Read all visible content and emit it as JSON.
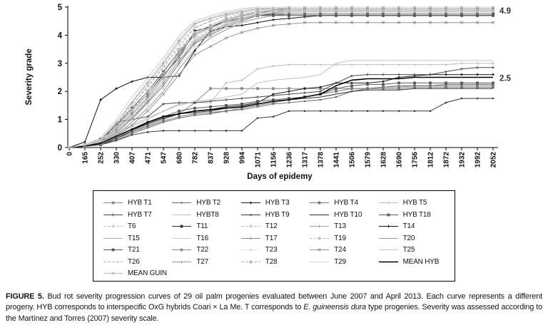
{
  "annotations": [
    {
      "text": "4.9",
      "value": 4.87
    },
    {
      "text": "2.5",
      "value": 2.47
    }
  ],
  "caption": {
    "label": "FIGURE 5.",
    "part1": " Bud rot severity progression curves of 29 oil palm progenies evaluated between June 2007 and April 2013. Each curve represents a different progeny. HYB corresponds to interspecific OxG hybrids Coari × La Me. T corresponds to ",
    "italic": "E. guineensis dura",
    "part2": " type progenies. Severity was assessed according to the Martínez and Torres (2007) severity scale."
  },
  "chart_data": {
    "type": "line",
    "title": "",
    "xlabel": "Days of epidemy",
    "ylabel": "Severity grade",
    "ylim": [
      0,
      5
    ],
    "yticks": [
      0,
      1,
      2,
      3,
      4,
      5
    ],
    "grid": false,
    "legend_position": "bottom-box",
    "categories": [
      0,
      165,
      252,
      330,
      407,
      471,
      547,
      680,
      782,
      837,
      928,
      994,
      1071,
      1156,
      1236,
      1317,
      1378,
      1441,
      1506,
      1579,
      1628,
      1690,
      1756,
      1812,
      1872,
      1932,
      1992,
      2052
    ],
    "series": [
      {
        "name": "HYB T1",
        "color": "#8a8a8a",
        "marker": "square",
        "dash": "solid",
        "width": 1,
        "values": [
          0,
          0.05,
          0.1,
          0.3,
          0.55,
          0.8,
          1.0,
          1.2,
          1.6,
          2.1,
          2.1,
          2.1,
          2.1,
          2.1,
          2.1,
          2.1,
          2.1,
          2.1,
          2.1,
          2.1,
          2.15,
          2.15,
          2.2,
          2.2,
          2.2,
          2.2,
          2.2,
          2.2
        ]
      },
      {
        "name": "HYB T2",
        "color": "#6e6e6e",
        "marker": "dot",
        "dash": "solid",
        "width": 1,
        "values": [
          0,
          0.05,
          0.1,
          0.25,
          0.5,
          0.7,
          0.9,
          1.05,
          1.15,
          1.2,
          1.3,
          1.35,
          1.45,
          1.55,
          1.6,
          1.65,
          1.7,
          1.8,
          2.0,
          2.1,
          2.15,
          2.2,
          2.2,
          2.2,
          2.25,
          2.25,
          2.25,
          2.25
        ]
      },
      {
        "name": "HYB T3",
        "color": "#1f1f1f",
        "marker": "diamond",
        "dash": "solid",
        "width": 1,
        "values": [
          0,
          0.05,
          0.15,
          0.4,
          0.65,
          0.85,
          1.05,
          1.2,
          1.3,
          1.35,
          1.45,
          1.5,
          1.6,
          1.9,
          2.0,
          2.1,
          2.15,
          2.3,
          2.3,
          2.3,
          2.35,
          2.5,
          2.55,
          2.6,
          2.6,
          2.6,
          2.6,
          2.6
        ]
      },
      {
        "name": "HYB T4",
        "color": "#7a7a7a",
        "marker": "square",
        "dash": "solid",
        "width": 1,
        "values": [
          0,
          0.05,
          0.1,
          0.3,
          0.55,
          0.75,
          0.95,
          1.1,
          1.2,
          1.25,
          1.3,
          1.4,
          1.5,
          1.6,
          1.7,
          1.8,
          1.9,
          2.0,
          2.1,
          2.1,
          2.1,
          2.1,
          2.15,
          2.15,
          2.15,
          2.15,
          2.15,
          2.15
        ]
      },
      {
        "name": "HYB T5",
        "color": "#bdbdbd",
        "marker": "plus",
        "dash": "solid",
        "width": 1,
        "values": [
          0,
          0.05,
          0.15,
          0.45,
          0.75,
          1.0,
          1.3,
          1.55,
          1.6,
          1.6,
          2.3,
          2.4,
          2.8,
          2.9,
          2.95,
          2.95,
          2.95,
          2.95,
          2.95,
          2.95,
          2.95,
          2.95,
          2.95,
          2.95,
          2.95,
          3.0,
          3.0,
          3.0
        ]
      },
      {
        "name": "HYB T7",
        "color": "#4a4a4a",
        "marker": "plus",
        "dash": "solid",
        "width": 1,
        "values": [
          0,
          0.05,
          0.15,
          0.9,
          1.0,
          1.1,
          1.55,
          1.6,
          1.6,
          1.65,
          1.7,
          1.75,
          1.8,
          1.85,
          1.9,
          1.95,
          2.0,
          2.3,
          2.55,
          2.6,
          2.6,
          2.6,
          2.6,
          2.6,
          2.7,
          2.8,
          2.85,
          2.85
        ]
      },
      {
        "name": "HYBT8",
        "color": "#c0c0c0",
        "marker": "none",
        "dash": "solid",
        "width": 1,
        "values": [
          0,
          0.05,
          0.2,
          0.5,
          0.8,
          1.05,
          1.3,
          1.5,
          1.65,
          1.7,
          1.8,
          1.9,
          2.3,
          2.4,
          2.45,
          2.5,
          2.6,
          3.0,
          3.1,
          3.1,
          3.1,
          3.1,
          3.1,
          3.1,
          3.1,
          3.1,
          3.1,
          3.1
        ]
      },
      {
        "name": "HYB T9",
        "color": "#3a3a3a",
        "marker": "dot",
        "dash": "solid",
        "width": 1,
        "values": [
          0,
          0.05,
          0.1,
          0.25,
          0.45,
          0.55,
          0.6,
          0.6,
          0.6,
          0.6,
          0.6,
          0.6,
          1.05,
          1.1,
          1.3,
          1.3,
          1.3,
          1.3,
          1.3,
          1.3,
          1.3,
          1.3,
          1.3,
          1.3,
          1.6,
          1.75,
          1.75,
          1.75
        ]
      },
      {
        "name": "HYB T10",
        "color": "#2a2a2a",
        "marker": "none",
        "dash": "solid",
        "width": 1,
        "values": [
          0,
          0.05,
          0.1,
          0.35,
          0.6,
          0.85,
          1.05,
          1.2,
          1.25,
          1.3,
          1.4,
          1.45,
          1.55,
          1.65,
          1.7,
          1.75,
          1.8,
          1.9,
          2.0,
          2.05,
          2.05,
          2.05,
          2.1,
          2.1,
          2.1,
          2.1,
          2.1,
          2.1
        ]
      },
      {
        "name": "HYB T18",
        "color": "#5a5a5a",
        "marker": "square",
        "dash": "solid",
        "width": 1,
        "values": [
          0,
          0.05,
          0.1,
          0.3,
          0.6,
          0.9,
          1.1,
          1.3,
          1.4,
          1.45,
          1.5,
          1.55,
          1.65,
          1.7,
          1.75,
          1.8,
          1.9,
          2.1,
          2.2,
          2.25,
          2.25,
          2.3,
          2.3,
          2.3,
          2.3,
          2.3,
          2.3,
          2.3
        ]
      },
      {
        "name": "T6",
        "color": "#c6c6c6",
        "marker": "x",
        "dash": "dash",
        "width": 1,
        "values": [
          0,
          0.1,
          0.3,
          0.8,
          1.5,
          2.2,
          2.9,
          3.7,
          4.3,
          4.5,
          4.7,
          4.8,
          4.9,
          4.95,
          5.0,
          5.0,
          5.0,
          5.0,
          5.0,
          5.0,
          5.0,
          5.0,
          5.0,
          5.0,
          5.0,
          5.0,
          5.0,
          5.0
        ]
      },
      {
        "name": "T11",
        "color": "#2f2f2f",
        "marker": "square",
        "dash": "solid",
        "width": 1,
        "values": [
          0,
          0.1,
          0.25,
          0.7,
          1.3,
          1.9,
          2.6,
          3.2,
          4.15,
          4.3,
          4.5,
          4.6,
          4.7,
          4.75,
          4.75,
          4.75,
          4.75,
          4.75,
          4.75,
          4.75,
          4.75,
          4.75,
          4.75,
          4.75,
          4.75,
          4.75,
          4.75,
          4.75
        ]
      },
      {
        "name": "T12",
        "color": "#c2c2c2",
        "marker": "circle",
        "dash": "dash",
        "width": 1,
        "values": [
          0,
          0.05,
          0.2,
          0.6,
          1.1,
          1.7,
          2.4,
          3.2,
          3.9,
          4.2,
          4.5,
          4.7,
          4.85,
          4.9,
          4.9,
          4.9,
          4.9,
          4.9,
          4.9,
          4.9,
          4.9,
          4.9,
          4.9,
          4.9,
          4.9,
          4.9,
          4.9,
          4.9
        ]
      },
      {
        "name": "T13",
        "color": "#9e9e9e",
        "marker": "plus",
        "dash": "solid",
        "width": 1,
        "values": [
          0,
          0.1,
          0.3,
          0.9,
          1.6,
          2.3,
          3.0,
          3.8,
          4.4,
          4.6,
          4.75,
          4.85,
          4.95,
          4.95,
          4.95,
          4.95,
          4.95,
          4.95,
          4.95,
          4.95,
          4.95,
          4.95,
          4.95,
          4.95,
          4.95,
          4.95,
          4.95,
          4.95
        ]
      },
      {
        "name": "T14",
        "color": "#111111",
        "marker": "plus",
        "dash": "solid",
        "width": 1,
        "values": [
          0,
          0.2,
          1.7,
          2.1,
          2.35,
          2.5,
          2.5,
          2.55,
          3.45,
          4.15,
          4.3,
          4.35,
          4.45,
          4.55,
          4.6,
          4.65,
          4.7,
          4.7,
          4.7,
          4.7,
          4.7,
          4.7,
          4.7,
          4.7,
          4.7,
          4.7,
          4.7,
          4.7
        ]
      },
      {
        "name": "T15",
        "color": "#a8a8a8",
        "marker": "none",
        "dash": "solid",
        "width": 1,
        "values": [
          0,
          0.05,
          0.15,
          0.5,
          1.0,
          1.6,
          2.2,
          3.0,
          3.8,
          4.1,
          4.4,
          4.6,
          4.75,
          4.85,
          4.9,
          4.9,
          4.9,
          4.9,
          4.9,
          4.9,
          4.9,
          4.9,
          4.9,
          4.9,
          4.9,
          4.9,
          4.9,
          4.9
        ]
      },
      {
        "name": "T16",
        "color": "#d0d0d0",
        "marker": "none",
        "dash": "solid",
        "width": 1,
        "values": [
          0,
          0.1,
          0.35,
          1.0,
          1.8,
          2.5,
          3.2,
          4.0,
          4.5,
          4.7,
          4.85,
          4.95,
          5.0,
          5.0,
          5.0,
          5.0,
          5.0,
          5.0,
          5.0,
          5.0,
          5.0,
          5.0,
          5.0,
          5.0,
          5.0,
          5.0,
          5.0,
          5.0
        ]
      },
      {
        "name": "T17",
        "color": "#8e8e8e",
        "marker": "plus",
        "dash": "solid",
        "width": 1,
        "values": [
          0,
          0.05,
          0.2,
          0.55,
          1.05,
          1.6,
          2.2,
          3.0,
          3.7,
          4.0,
          4.3,
          4.5,
          4.7,
          4.8,
          4.85,
          4.85,
          4.85,
          4.85,
          4.85,
          4.85,
          4.85,
          4.85,
          4.85,
          4.85,
          4.85,
          4.85,
          4.85,
          4.85
        ]
      },
      {
        "name": "T19",
        "color": "#bdbdbd",
        "marker": "square",
        "dash": "dash",
        "width": 1,
        "values": [
          0,
          0.1,
          0.25,
          0.7,
          1.3,
          2.0,
          2.7,
          3.5,
          4.1,
          4.35,
          4.6,
          4.75,
          4.85,
          4.9,
          4.9,
          4.9,
          4.9,
          4.9,
          4.9,
          4.9,
          4.9,
          4.9,
          4.9,
          4.9,
          4.9,
          4.9,
          4.9,
          4.9
        ]
      },
      {
        "name": "T20",
        "color": "#999999",
        "marker": "none",
        "dash": "solid",
        "width": 1,
        "values": [
          0,
          0.05,
          0.15,
          0.45,
          0.9,
          1.4,
          2.0,
          2.8,
          3.5,
          3.9,
          4.2,
          4.45,
          4.6,
          4.7,
          4.75,
          4.75,
          4.75,
          4.75,
          4.75,
          4.75,
          4.75,
          4.75,
          4.75,
          4.75,
          4.75,
          4.75,
          4.75,
          4.75
        ]
      },
      {
        "name": "T21",
        "color": "#565656",
        "marker": "square",
        "dash": "solid",
        "width": 1,
        "values": [
          0,
          0.1,
          0.3,
          0.8,
          1.4,
          2.0,
          2.7,
          3.4,
          4.0,
          4.25,
          4.5,
          4.6,
          4.7,
          4.7,
          4.7,
          4.7,
          4.7,
          4.7,
          4.7,
          4.7,
          4.7,
          4.7,
          4.7,
          4.7,
          4.7,
          4.7,
          4.7,
          4.7
        ]
      },
      {
        "name": "T22",
        "color": "#8c8c8c",
        "marker": "square",
        "dash": "solid",
        "width": 1,
        "values": [
          0,
          0.1,
          0.25,
          0.65,
          1.2,
          1.8,
          2.5,
          3.3,
          4.05,
          4.3,
          4.55,
          4.7,
          4.8,
          4.9,
          4.95,
          4.95,
          4.95,
          4.95,
          4.95,
          4.95,
          4.95,
          4.95,
          4.95,
          4.95,
          4.95,
          4.95,
          4.95,
          4.95
        ]
      },
      {
        "name": "T23",
        "color": "#cccccc",
        "marker": "dot",
        "dash": "dot",
        "width": 1,
        "values": [
          0,
          0.05,
          0.15,
          0.5,
          1.0,
          1.5,
          2.1,
          2.9,
          3.6,
          3.95,
          4.3,
          4.55,
          4.7,
          4.8,
          4.85,
          4.9,
          4.9,
          4.9,
          4.9,
          4.9,
          4.9,
          4.9,
          4.9,
          4.9,
          4.9,
          4.9,
          4.9,
          4.9
        ]
      },
      {
        "name": "T24",
        "color": "#949494",
        "marker": "x",
        "dash": "solid",
        "width": 1,
        "values": [
          0,
          0.05,
          0.15,
          0.4,
          0.8,
          1.3,
          1.9,
          2.6,
          3.3,
          3.6,
          3.9,
          4.1,
          4.25,
          4.35,
          4.4,
          4.45,
          4.45,
          4.45,
          4.45,
          4.45,
          4.45,
          4.45,
          4.45,
          4.45,
          4.45,
          4.45,
          4.45,
          4.45
        ]
      },
      {
        "name": "T25",
        "color": "#c6c6c6",
        "marker": "none",
        "dash": "solid",
        "width": 1,
        "values": [
          0,
          0.05,
          0.2,
          0.6,
          1.15,
          1.75,
          2.4,
          3.2,
          3.85,
          4.15,
          4.45,
          4.6,
          4.7,
          4.8,
          4.8,
          4.8,
          4.8,
          4.8,
          4.8,
          4.8,
          4.8,
          4.8,
          4.8,
          4.8,
          4.8,
          4.8,
          4.8,
          4.8
        ]
      },
      {
        "name": "T26",
        "color": "#b0b0b0",
        "marker": "none",
        "dash": "dash",
        "width": 1,
        "values": [
          0,
          0.1,
          0.3,
          0.85,
          1.5,
          2.15,
          2.85,
          3.6,
          4.25,
          4.5,
          4.7,
          4.8,
          4.9,
          4.95,
          4.95,
          4.95,
          4.95,
          4.95,
          4.95,
          4.95,
          4.95,
          4.95,
          4.95,
          4.95,
          4.95,
          4.95,
          4.95,
          4.95
        ]
      },
      {
        "name": "T27",
        "color": "#9a9a9a",
        "marker": "plus",
        "dash": "solid",
        "width": 1,
        "values": [
          0,
          0.05,
          0.2,
          0.55,
          1.05,
          1.65,
          2.3,
          3.1,
          3.75,
          4.05,
          4.35,
          4.55,
          4.7,
          4.8,
          4.85,
          4.85,
          4.85,
          4.85,
          4.85,
          4.85,
          4.85,
          4.85,
          4.85,
          4.85,
          4.85,
          4.85,
          4.85,
          4.85
        ]
      },
      {
        "name": "T28",
        "color": "#b4b4b4",
        "marker": "square",
        "dash": "dash",
        "width": 1,
        "values": [
          0,
          0.1,
          0.25,
          0.75,
          1.35,
          2.0,
          2.65,
          3.45,
          4.1,
          4.35,
          4.6,
          4.75,
          4.85,
          4.9,
          4.9,
          4.9,
          4.9,
          4.9,
          4.9,
          4.9,
          4.9,
          4.9,
          4.9,
          4.9,
          4.9,
          4.9,
          4.9,
          4.9
        ]
      },
      {
        "name": "T29",
        "color": "#d6d6d6",
        "marker": "none",
        "dash": "solid",
        "width": 1,
        "values": [
          0,
          0.1,
          0.3,
          0.9,
          1.65,
          2.4,
          3.1,
          3.9,
          4.45,
          4.65,
          4.8,
          4.9,
          5.0,
          5.0,
          5.0,
          5.0,
          5.0,
          5.0,
          5.0,
          5.0,
          5.0,
          5.0,
          5.0,
          5.0,
          5.0,
          5.0,
          5.0,
          5.0
        ]
      },
      {
        "name": "MEAN HYB",
        "color": "#000000",
        "marker": "none",
        "dash": "solid",
        "width": 1.6,
        "values": [
          0,
          0.05,
          0.15,
          0.4,
          0.65,
          0.9,
          1.1,
          1.2,
          1.3,
          1.35,
          1.4,
          1.45,
          1.55,
          1.65,
          1.7,
          1.8,
          1.9,
          2.2,
          2.4,
          2.45,
          2.45,
          2.45,
          2.5,
          2.5,
          2.5,
          2.5,
          2.5,
          2.5
        ]
      },
      {
        "name": "MEAN GUIN",
        "color": "#b8b8b8",
        "marker": "x",
        "dash": "solid",
        "width": 1,
        "values": [
          0,
          0.08,
          0.25,
          0.7,
          1.3,
          1.9,
          2.55,
          3.35,
          4.0,
          4.25,
          4.5,
          4.65,
          4.8,
          4.85,
          4.85,
          4.85,
          4.85,
          4.85,
          4.85,
          4.85,
          4.85,
          4.85,
          4.85,
          4.85,
          4.85,
          4.85,
          4.85,
          4.85
        ]
      }
    ]
  }
}
